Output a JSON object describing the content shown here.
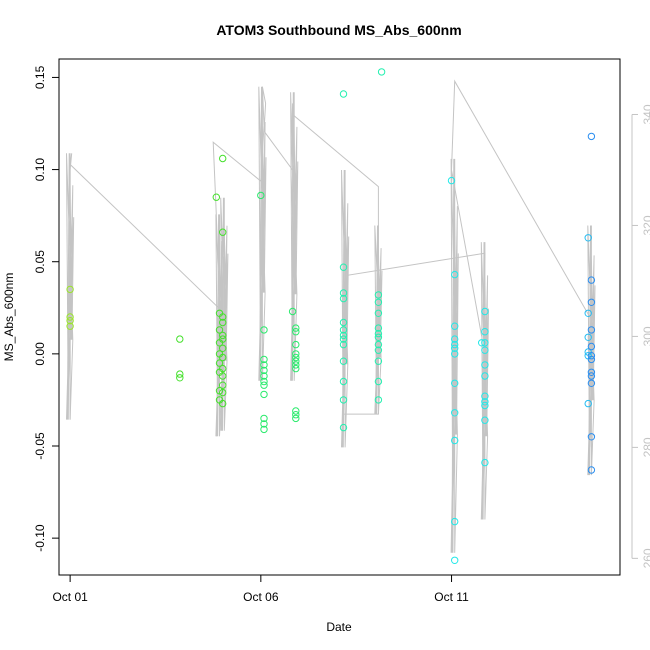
{
  "chart_data": {
    "type": "scatter",
    "title": "ATOM3 Southbound MS_Abs_600nm",
    "xlabel": "Date",
    "ylabel": "MS_Abs_600nm",
    "x_range": [
      "2014-09-30T17:00",
      "2014-10-15T10:00"
    ],
    "ylim": [
      -0.12,
      0.16
    ],
    "y2lim": [
      257,
      350
    ],
    "x_ticks": [
      {
        "label": "Oct 01",
        "value": "2014-10-01T00:00"
      },
      {
        "label": "Oct 06",
        "value": "2014-10-06T00:00"
      },
      {
        "label": "Oct 11",
        "value": "2014-10-11T00:00"
      }
    ],
    "y_ticks": [
      {
        "label": "-0.10",
        "value": -0.1
      },
      {
        "label": "-0.05",
        "value": -0.05
      },
      {
        "label": "0.00",
        "value": 0.0
      },
      {
        "label": "0.05",
        "value": 0.05
      },
      {
        "label": "0.10",
        "value": 0.1
      },
      {
        "label": "0.15",
        "value": 0.15
      }
    ],
    "y2_ticks": [
      {
        "label": "260",
        "value": 260
      },
      {
        "label": "280",
        "value": 280
      },
      {
        "label": "300",
        "value": 300
      },
      {
        "label": "320",
        "value": 320
      },
      {
        "label": "340",
        "value": 340
      }
    ],
    "grid": false,
    "legend": "none",
    "point_colors": [
      "#9be52c",
      "#45e02c",
      "#2aea6c",
      "#24f0b0",
      "#22e8e8",
      "#26bcf2",
      "#2a8ef0"
    ],
    "line_color": "#c4c4c4",
    "axis2_color": "#c4c4c4",
    "points": [
      {
        "x": "2014-10-01T00:00",
        "y": 0.035,
        "c": 0
      },
      {
        "x": "2014-10-01T00:00",
        "y": 0.02,
        "c": 0
      },
      {
        "x": "2014-10-01T00:00",
        "y": 0.018,
        "c": 0
      },
      {
        "x": "2014-10-01T00:00",
        "y": 0.015,
        "c": 0
      },
      {
        "x": "2014-10-03T21:00",
        "y": 0.008,
        "c": 1
      },
      {
        "x": "2014-10-03T21:00",
        "y": -0.011,
        "c": 1
      },
      {
        "x": "2014-10-03T21:00",
        "y": -0.013,
        "c": 1
      },
      {
        "x": "2014-10-04T20:00",
        "y": 0.085,
        "c": 1
      },
      {
        "x": "2014-10-04T22:00",
        "y": 0.022,
        "c": 1
      },
      {
        "x": "2014-10-04T22:00",
        "y": 0.013,
        "c": 1
      },
      {
        "x": "2014-10-04T22:00",
        "y": 0.006,
        "c": 1
      },
      {
        "x": "2014-10-04T22:00",
        "y": 0.0,
        "c": 1
      },
      {
        "x": "2014-10-04T22:00",
        "y": -0.005,
        "c": 1
      },
      {
        "x": "2014-10-04T22:00",
        "y": -0.01,
        "c": 1
      },
      {
        "x": "2014-10-04T22:00",
        "y": -0.02,
        "c": 1
      },
      {
        "x": "2014-10-04T22:00",
        "y": -0.025,
        "c": 1
      },
      {
        "x": "2014-10-05T00:00",
        "y": 0.106,
        "c": 1
      },
      {
        "x": "2014-10-05T00:00",
        "y": 0.066,
        "c": 1
      },
      {
        "x": "2014-10-05T00:00",
        "y": 0.02,
        "c": 1
      },
      {
        "x": "2014-10-05T00:00",
        "y": 0.017,
        "c": 1
      },
      {
        "x": "2014-10-05T00:00",
        "y": 0.01,
        "c": 1
      },
      {
        "x": "2014-10-05T00:00",
        "y": 0.008,
        "c": 1
      },
      {
        "x": "2014-10-05T00:00",
        "y": 0.003,
        "c": 1
      },
      {
        "x": "2014-10-05T00:00",
        "y": -0.002,
        "c": 1
      },
      {
        "x": "2014-10-05T00:00",
        "y": -0.008,
        "c": 1
      },
      {
        "x": "2014-10-05T00:00",
        "y": -0.012,
        "c": 1
      },
      {
        "x": "2014-10-05T00:00",
        "y": -0.017,
        "c": 1
      },
      {
        "x": "2014-10-05T00:00",
        "y": -0.021,
        "c": 1
      },
      {
        "x": "2014-10-05T00:00",
        "y": -0.027,
        "c": 1
      },
      {
        "x": "2014-10-06T00:00",
        "y": 0.086,
        "c": 2
      },
      {
        "x": "2014-10-06T02:00",
        "y": 0.013,
        "c": 2
      },
      {
        "x": "2014-10-06T02:00",
        "y": -0.003,
        "c": 2
      },
      {
        "x": "2014-10-06T02:00",
        "y": -0.006,
        "c": 2
      },
      {
        "x": "2014-10-06T02:00",
        "y": -0.009,
        "c": 2
      },
      {
        "x": "2014-10-06T02:00",
        "y": -0.012,
        "c": 2
      },
      {
        "x": "2014-10-06T02:00",
        "y": -0.015,
        "c": 2
      },
      {
        "x": "2014-10-06T02:00",
        "y": -0.017,
        "c": 2
      },
      {
        "x": "2014-10-06T02:00",
        "y": -0.022,
        "c": 2
      },
      {
        "x": "2014-10-06T02:00",
        "y": -0.035,
        "c": 2
      },
      {
        "x": "2014-10-06T02:00",
        "y": -0.038,
        "c": 2
      },
      {
        "x": "2014-10-06T02:00",
        "y": -0.041,
        "c": 2
      },
      {
        "x": "2014-10-06T20:00",
        "y": 0.023,
        "c": 2
      },
      {
        "x": "2014-10-06T22:00",
        "y": 0.014,
        "c": 2
      },
      {
        "x": "2014-10-06T22:00",
        "y": 0.012,
        "c": 2
      },
      {
        "x": "2014-10-06T22:00",
        "y": 0.005,
        "c": 2
      },
      {
        "x": "2014-10-06T22:00",
        "y": 0.0,
        "c": 2
      },
      {
        "x": "2014-10-06T22:00",
        "y": -0.002,
        "c": 2
      },
      {
        "x": "2014-10-06T22:00",
        "y": -0.004,
        "c": 2
      },
      {
        "x": "2014-10-06T22:00",
        "y": -0.006,
        "c": 2
      },
      {
        "x": "2014-10-06T22:00",
        "y": -0.008,
        "c": 2
      },
      {
        "x": "2014-10-06T22:00",
        "y": -0.031,
        "c": 2
      },
      {
        "x": "2014-10-06T22:00",
        "y": -0.033,
        "c": 2
      },
      {
        "x": "2014-10-06T22:00",
        "y": -0.035,
        "c": 2
      },
      {
        "x": "2014-10-08T04:00",
        "y": 0.141,
        "c": 3
      },
      {
        "x": "2014-10-08T04:00",
        "y": 0.047,
        "c": 3
      },
      {
        "x": "2014-10-08T04:00",
        "y": 0.033,
        "c": 3
      },
      {
        "x": "2014-10-08T04:00",
        "y": 0.03,
        "c": 3
      },
      {
        "x": "2014-10-08T04:00",
        "y": 0.017,
        "c": 3
      },
      {
        "x": "2014-10-08T04:00",
        "y": 0.013,
        "c": 3
      },
      {
        "x": "2014-10-08T04:00",
        "y": 0.01,
        "c": 3
      },
      {
        "x": "2014-10-08T04:00",
        "y": 0.008,
        "c": 3
      },
      {
        "x": "2014-10-08T04:00",
        "y": 0.005,
        "c": 3
      },
      {
        "x": "2014-10-08T04:00",
        "y": -0.004,
        "c": 3
      },
      {
        "x": "2014-10-08T04:00",
        "y": -0.015,
        "c": 3
      },
      {
        "x": "2014-10-08T04:00",
        "y": -0.025,
        "c": 3
      },
      {
        "x": "2014-10-08T04:00",
        "y": -0.04,
        "c": 3
      },
      {
        "x": "2014-10-09T04:00",
        "y": 0.153,
        "c": 3
      },
      {
        "x": "2014-10-09T02:00",
        "y": 0.032,
        "c": 3
      },
      {
        "x": "2014-10-09T02:00",
        "y": 0.028,
        "c": 3
      },
      {
        "x": "2014-10-09T02:00",
        "y": 0.022,
        "c": 3
      },
      {
        "x": "2014-10-09T02:00",
        "y": 0.014,
        "c": 3
      },
      {
        "x": "2014-10-09T02:00",
        "y": 0.011,
        "c": 3
      },
      {
        "x": "2014-10-09T02:00",
        "y": 0.009,
        "c": 3
      },
      {
        "x": "2014-10-09T02:00",
        "y": 0.005,
        "c": 3
      },
      {
        "x": "2014-10-09T02:00",
        "y": 0.002,
        "c": 3
      },
      {
        "x": "2014-10-09T02:00",
        "y": -0.004,
        "c": 3
      },
      {
        "x": "2014-10-09T02:00",
        "y": -0.015,
        "c": 3
      },
      {
        "x": "2014-10-09T02:00",
        "y": -0.025,
        "c": 3
      },
      {
        "x": "2014-10-11T00:00",
        "y": 0.094,
        "c": 4
      },
      {
        "x": "2014-10-11T02:00",
        "y": 0.043,
        "c": 4
      },
      {
        "x": "2014-10-11T02:00",
        "y": 0.015,
        "c": 4
      },
      {
        "x": "2014-10-11T02:00",
        "y": 0.008,
        "c": 4
      },
      {
        "x": "2014-10-11T02:00",
        "y": 0.005,
        "c": 4
      },
      {
        "x": "2014-10-11T02:00",
        "y": 0.003,
        "c": 4
      },
      {
        "x": "2014-10-11T02:00",
        "y": 0.0,
        "c": 4
      },
      {
        "x": "2014-10-11T02:00",
        "y": -0.016,
        "c": 4
      },
      {
        "x": "2014-10-11T02:00",
        "y": -0.032,
        "c": 4
      },
      {
        "x": "2014-10-11T02:00",
        "y": -0.047,
        "c": 4
      },
      {
        "x": "2014-10-11T02:00",
        "y": -0.091,
        "c": 4
      },
      {
        "x": "2014-10-11T02:00",
        "y": -0.112,
        "c": 4
      },
      {
        "x": "2014-10-11T19:00",
        "y": 0.006,
        "c": 4
      },
      {
        "x": "2014-10-11T21:00",
        "y": 0.023,
        "c": 4
      },
      {
        "x": "2014-10-11T21:00",
        "y": 0.012,
        "c": 4
      },
      {
        "x": "2014-10-11T21:00",
        "y": 0.006,
        "c": 4
      },
      {
        "x": "2014-10-11T21:00",
        "y": 0.002,
        "c": 4
      },
      {
        "x": "2014-10-11T21:00",
        "y": -0.006,
        "c": 4
      },
      {
        "x": "2014-10-11T21:00",
        "y": -0.012,
        "c": 4
      },
      {
        "x": "2014-10-11T21:00",
        "y": -0.023,
        "c": 4
      },
      {
        "x": "2014-10-11T21:00",
        "y": -0.026,
        "c": 4
      },
      {
        "x": "2014-10-11T21:00",
        "y": -0.028,
        "c": 4
      },
      {
        "x": "2014-10-11T21:00",
        "y": -0.036,
        "c": 4
      },
      {
        "x": "2014-10-11T21:00",
        "y": -0.059,
        "c": 4
      },
      {
        "x": "2014-10-14T14:00",
        "y": 0.063,
        "c": 5
      },
      {
        "x": "2014-10-14T14:00",
        "y": 0.022,
        "c": 5
      },
      {
        "x": "2014-10-14T14:00",
        "y": 0.009,
        "c": 5
      },
      {
        "x": "2014-10-14T14:00",
        "y": 0.001,
        "c": 5
      },
      {
        "x": "2014-10-14T14:00",
        "y": -0.001,
        "c": 5
      },
      {
        "x": "2014-10-14T14:00",
        "y": -0.027,
        "c": 5
      },
      {
        "x": "2014-10-14T16:00",
        "y": 0.118,
        "c": 6
      },
      {
        "x": "2014-10-14T16:00",
        "y": 0.04,
        "c": 6
      },
      {
        "x": "2014-10-14T16:00",
        "y": 0.028,
        "c": 6
      },
      {
        "x": "2014-10-14T16:00",
        "y": 0.013,
        "c": 6
      },
      {
        "x": "2014-10-14T16:00",
        "y": 0.004,
        "c": 6
      },
      {
        "x": "2014-10-14T16:00",
        "y": -0.001,
        "c": 6
      },
      {
        "x": "2014-10-14T16:00",
        "y": -0.003,
        "c": 6
      },
      {
        "x": "2014-10-14T16:00",
        "y": -0.01,
        "c": 6
      },
      {
        "x": "2014-10-14T16:00",
        "y": -0.012,
        "c": 6
      },
      {
        "x": "2014-10-14T16:00",
        "y": -0.016,
        "c": 6
      },
      {
        "x": "2014-10-14T16:00",
        "y": -0.045,
        "c": 6
      },
      {
        "x": "2014-10-14T16:00",
        "y": -0.063,
        "c": 6
      }
    ],
    "y2_path": [
      [
        "2014-10-01T00:00",
        285
      ],
      [
        "2014-10-01T00:00",
        330
      ],
      [
        "2014-10-01T01:00",
        333
      ],
      [
        "2014-10-01T00:00",
        331
      ],
      [
        "2014-10-04T22:00",
        305
      ],
      [
        "2014-10-04T20:00",
        322
      ],
      [
        "2014-10-04T18:00",
        335
      ],
      [
        "2014-10-06T00:00",
        328
      ],
      [
        "2014-10-06T02:00",
        338
      ],
      [
        "2014-10-06T01:00",
        345
      ],
      [
        "2014-10-06T03:00",
        342
      ],
      [
        "2014-10-06T02:00",
        337
      ],
      [
        "2014-10-06T20:00",
        330
      ],
      [
        "2014-10-06T20:00",
        342
      ],
      [
        "2014-10-06T19:00",
        329
      ],
      [
        "2014-10-06T20:00",
        322
      ],
      [
        "2014-10-06T20:00",
        340
      ],
      [
        "2014-10-09T02:00",
        327
      ],
      [
        "2014-10-09T02:00",
        304
      ],
      [
        "2014-10-09T02:00",
        286
      ],
      [
        "2014-10-08T04:00",
        286
      ],
      [
        "2014-10-08T05:00",
        300
      ],
      [
        "2014-10-08T06:00",
        311
      ],
      [
        "2014-10-11T21:00",
        315
      ],
      [
        "2014-10-11T19:00",
        300
      ],
      [
        "2014-10-11T00:00",
        330
      ],
      [
        "2014-10-11T02:00",
        346
      ],
      [
        "2014-10-14T16:00",
        303
      ],
      [
        "2014-10-14T14:00",
        300
      ],
      [
        "2014-10-14T16:00",
        280
      ]
    ],
    "y2_bursts": [
      {
        "t": "2014-10-01T00:00",
        "lo": 285,
        "hi": 333
      },
      {
        "t": "2014-10-04T22:00",
        "lo": 282,
        "hi": 322
      },
      {
        "t": "2014-10-05T01:00",
        "lo": 283,
        "hi": 325
      },
      {
        "t": "2014-10-06T01:00",
        "lo": 292,
        "hi": 345
      },
      {
        "t": "2014-10-06T21:00",
        "lo": 292,
        "hi": 344
      },
      {
        "t": "2014-10-08T05:00",
        "lo": 280,
        "hi": 330
      },
      {
        "t": "2014-10-09T02:00",
        "lo": 286,
        "hi": 320
      },
      {
        "t": "2014-10-11T02:00",
        "lo": 261,
        "hi": 332
      },
      {
        "t": "2014-10-11T21:00",
        "lo": 267,
        "hi": 317
      },
      {
        "t": "2014-10-14T16:00",
        "lo": 275,
        "hi": 320
      }
    ]
  }
}
